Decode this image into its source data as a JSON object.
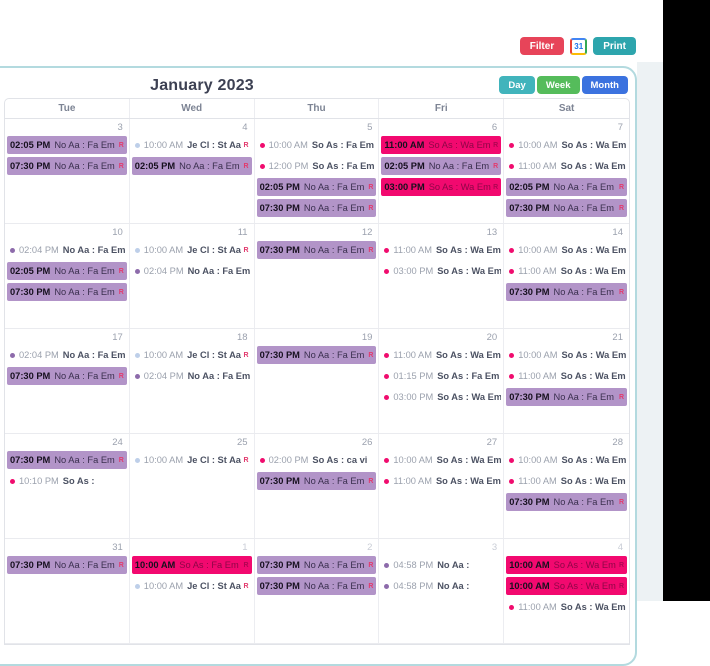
{
  "toolbar": {
    "filter": "Filter",
    "print": "Print"
  },
  "icons": {
    "gcal": "31",
    "recurring": "R"
  },
  "header": {
    "title": "January 2023",
    "views": [
      {
        "label": "Day",
        "color": "#41b4bc"
      },
      {
        "label": "Week",
        "color": "#55bc5b"
      },
      {
        "label": "Month",
        "color": "#3b72df"
      }
    ]
  },
  "colors": {
    "panel_border": "#b3dadf",
    "block_purple": "#b294c8",
    "block_pink": "#f2096f",
    "dot_pink": "#f00c6e",
    "dot_purple": "#8d6bab",
    "dot_blue": "#becfe9"
  },
  "calendar": {
    "day_headers": [
      "Tue",
      "Wed",
      "Thu",
      "Fri",
      "Sat"
    ],
    "weeks": [
      {
        "days": [
          {
            "date": "3",
            "events": [
              {
                "style": "block-purple",
                "time": "02:05 PM",
                "title": "No Aa : Fa Em",
                "r": true
              },
              {
                "style": "block-purple",
                "time": "07:30 PM",
                "title": "No Aa : Fa Em",
                "r": true
              }
            ]
          },
          {
            "date": "4",
            "events": [
              {
                "style": "dot-blue",
                "time": "10:00 AM",
                "title": "Je Cl : St Aa",
                "r": true
              },
              {
                "style": "block-purple",
                "time": "02:05 PM",
                "title": "No Aa : Fa Em",
                "r": true
              }
            ]
          },
          {
            "date": "5",
            "events": [
              {
                "style": "dot-pink",
                "time": "10:00 AM",
                "title": "So As : Fa Em"
              },
              {
                "style": "dot-pink",
                "time": "12:00 PM",
                "title": "So As : Fa Em"
              },
              {
                "style": "block-purple",
                "time": "02:05 PM",
                "title": "No Aa : Fa Em",
                "r": true
              },
              {
                "style": "block-purple",
                "time": "07:30 PM",
                "title": "No Aa : Fa Em",
                "r": true
              }
            ]
          },
          {
            "date": "6",
            "events": [
              {
                "style": "block-pink",
                "time": "11:00 AM",
                "title": "So As : Wa Em",
                "r": true
              },
              {
                "style": "block-purple",
                "time": "02:05 PM",
                "title": "No Aa : Fa Em",
                "r": true
              },
              {
                "style": "block-pink",
                "time": "03:00 PM",
                "title": "So As : Wa Em",
                "r": true
              }
            ]
          },
          {
            "date": "7",
            "events": [
              {
                "style": "dot-pink",
                "time": "10:00 AM",
                "title": "So As : Wa Em",
                "r": true
              },
              {
                "style": "dot-pink",
                "time": "11:00 AM",
                "title": "So As : Wa Em",
                "r": true
              },
              {
                "style": "block-purple",
                "time": "02:05 PM",
                "title": "No Aa : Fa Em",
                "r": true
              },
              {
                "style": "block-purple",
                "time": "07:30 PM",
                "title": "No Aa : Fa Em",
                "r": true
              }
            ]
          }
        ]
      },
      {
        "days": [
          {
            "date": "10",
            "events": [
              {
                "style": "dot-purple",
                "time": "02:04 PM",
                "title": "No Aa : Fa Em",
                "r": true
              },
              {
                "style": "block-purple",
                "time": "02:05 PM",
                "title": "No Aa : Fa Em",
                "r": true
              },
              {
                "style": "block-purple",
                "time": "07:30 PM",
                "title": "No Aa : Fa Em",
                "r": true
              }
            ]
          },
          {
            "date": "11",
            "events": [
              {
                "style": "dot-blue",
                "time": "10:00 AM",
                "title": "Je Cl : St Aa",
                "r": true
              },
              {
                "style": "dot-purple",
                "time": "02:04 PM",
                "title": "No Aa : Fa Em",
                "r": true
              }
            ]
          },
          {
            "date": "12",
            "events": [
              {
                "style": "block-purple",
                "time": "07:30 PM",
                "title": "No Aa : Fa Em",
                "r": true
              }
            ]
          },
          {
            "date": "13",
            "events": [
              {
                "style": "dot-pink",
                "time": "11:00 AM",
                "title": "So As : Wa Em",
                "r": true
              },
              {
                "style": "dot-pink",
                "time": "03:00 PM",
                "title": "So As : Wa Em",
                "r": true
              }
            ]
          },
          {
            "date": "14",
            "events": [
              {
                "style": "dot-pink",
                "time": "10:00 AM",
                "title": "So As : Wa Em",
                "r": true
              },
              {
                "style": "dot-pink",
                "time": "11:00 AM",
                "title": "So As : Wa Em",
                "r": true
              },
              {
                "style": "block-purple",
                "time": "07:30 PM",
                "title": "No Aa : Fa Em",
                "r": true
              }
            ]
          }
        ]
      },
      {
        "days": [
          {
            "date": "17",
            "events": [
              {
                "style": "dot-purple",
                "time": "02:04 PM",
                "title": "No Aa : Fa Em",
                "r": true
              },
              {
                "style": "block-purple",
                "time": "07:30 PM",
                "title": "No Aa : Fa Em",
                "r": true
              }
            ]
          },
          {
            "date": "18",
            "events": [
              {
                "style": "dot-blue",
                "time": "10:00 AM",
                "title": "Je Cl : St Aa",
                "r": true
              },
              {
                "style": "dot-purple",
                "time": "02:04 PM",
                "title": "No Aa : Fa Em",
                "r": true
              }
            ]
          },
          {
            "date": "19",
            "events": [
              {
                "style": "block-purple",
                "time": "07:30 PM",
                "title": "No Aa : Fa Em",
                "r": true
              }
            ]
          },
          {
            "date": "20",
            "events": [
              {
                "style": "dot-pink",
                "time": "11:00 AM",
                "title": "So As : Wa Em",
                "r": true
              },
              {
                "style": "dot-pink",
                "time": "01:15 PM",
                "title": "So As : Fa Em"
              },
              {
                "style": "dot-pink",
                "time": "03:00 PM",
                "title": "So As : Wa Em",
                "r": true
              }
            ]
          },
          {
            "date": "21",
            "events": [
              {
                "style": "dot-pink",
                "time": "10:00 AM",
                "title": "So As : Wa Em",
                "r": true
              },
              {
                "style": "dot-pink",
                "time": "11:00 AM",
                "title": "So As : Wa Em",
                "r": true
              },
              {
                "style": "block-purple",
                "time": "07:30 PM",
                "title": "No Aa : Fa Em",
                "r": true
              }
            ]
          }
        ]
      },
      {
        "days": [
          {
            "date": "24",
            "events": [
              {
                "style": "block-purple",
                "time": "07:30 PM",
                "title": "No Aa : Fa Em",
                "r": true
              },
              {
                "style": "dot-pink",
                "time": "10:10 PM",
                "title": "So As :"
              }
            ]
          },
          {
            "date": "25",
            "events": [
              {
                "style": "dot-blue",
                "time": "10:00 AM",
                "title": "Je Cl : St Aa",
                "r": true
              }
            ]
          },
          {
            "date": "26",
            "events": [
              {
                "style": "dot-pink",
                "time": "02:00 PM",
                "title": "So As : ca vi"
              },
              {
                "style": "block-purple",
                "time": "07:30 PM",
                "title": "No Aa : Fa Em",
                "r": true
              }
            ]
          },
          {
            "date": "27",
            "events": [
              {
                "style": "dot-pink",
                "time": "10:00 AM",
                "title": "So As : Wa Em",
                "r": true
              },
              {
                "style": "dot-pink",
                "time": "11:00 AM",
                "title": "So As : Wa Em",
                "r": true
              }
            ]
          },
          {
            "date": "28",
            "events": [
              {
                "style": "dot-pink",
                "time": "10:00 AM",
                "title": "So As : Wa Em",
                "r": true
              },
              {
                "style": "dot-pink",
                "time": "11:00 AM",
                "title": "So As : Wa Em",
                "r": true
              },
              {
                "style": "block-purple",
                "time": "07:30 PM",
                "title": "No Aa : Fa Em",
                "r": true
              }
            ]
          }
        ]
      },
      {
        "days": [
          {
            "date": "31",
            "events": [
              {
                "style": "block-purple",
                "time": "07:30 PM",
                "title": "No Aa : Fa Em",
                "r": true
              }
            ]
          },
          {
            "date": "1",
            "muted": true,
            "events": [
              {
                "style": "block-pink",
                "time": "10:00 AM",
                "title": "So As : Fa Em",
                "r": true
              },
              {
                "style": "dot-blue",
                "time": "10:00 AM",
                "title": "Je Cl : St Aa",
                "r": true
              }
            ]
          },
          {
            "date": "2",
            "muted": true,
            "events": [
              {
                "style": "block-purple",
                "time": "07:30 PM",
                "title": "No Aa : Fa Em",
                "r": true
              },
              {
                "style": "block-purple",
                "time": "07:30 PM",
                "title": "No Aa : Fa Em",
                "r": true
              }
            ]
          },
          {
            "date": "3",
            "muted": true,
            "events": [
              {
                "style": "dot-purple",
                "time": "04:58 PM",
                "title": "No Aa :"
              },
              {
                "style": "dot-purple",
                "time": "04:58 PM",
                "title": "No Aa :"
              }
            ]
          },
          {
            "date": "4",
            "muted": true,
            "events": [
              {
                "style": "block-pink",
                "time": "10:00 AM",
                "title": "So As : Wa Em",
                "r": true
              },
              {
                "style": "block-pink",
                "time": "10:00 AM",
                "title": "So As : Wa Em",
                "r": true
              },
              {
                "style": "dot-pink",
                "time": "11:00 AM",
                "title": "So As : Wa Em",
                "r": true
              }
            ]
          }
        ]
      }
    ]
  }
}
